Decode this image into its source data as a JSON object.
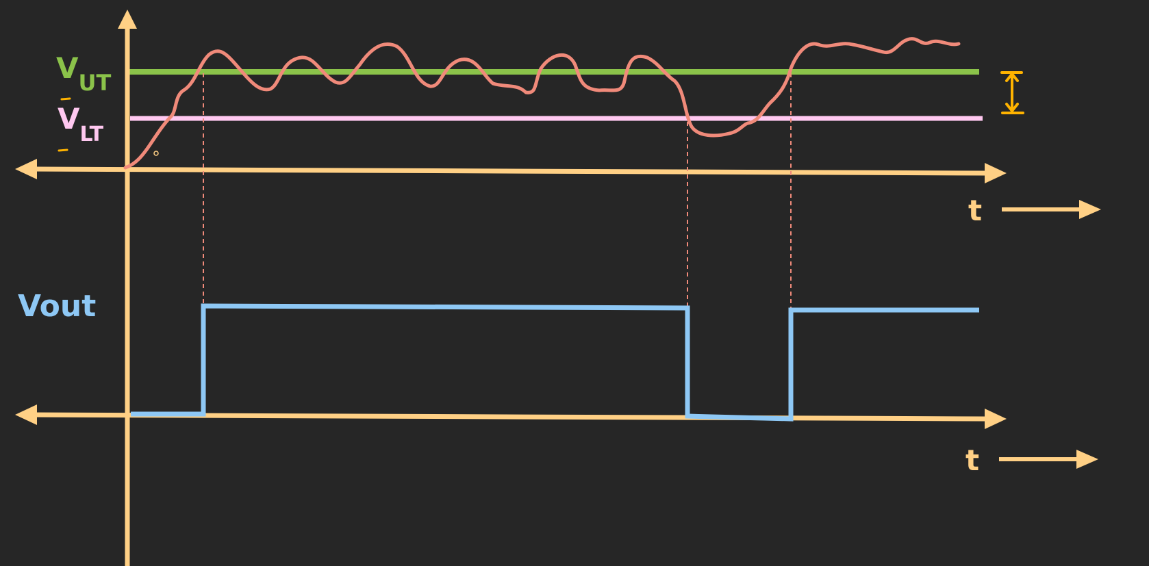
{
  "labels": {
    "vut_main": "V",
    "vut_sub": "UT",
    "vlt_main": "V",
    "vlt_sub": "LT",
    "vout": "Vout",
    "t_top": "t",
    "t_bottom": "t"
  },
  "colors": {
    "background": "#262626",
    "axis": "#ffd085",
    "upper_threshold": "#8bc34a",
    "lower_threshold": "#ffc8f0",
    "input_signal": "#f08a7a",
    "output_signal": "#8ec8f5",
    "hysteresis_marker": "#ffb300"
  }
}
